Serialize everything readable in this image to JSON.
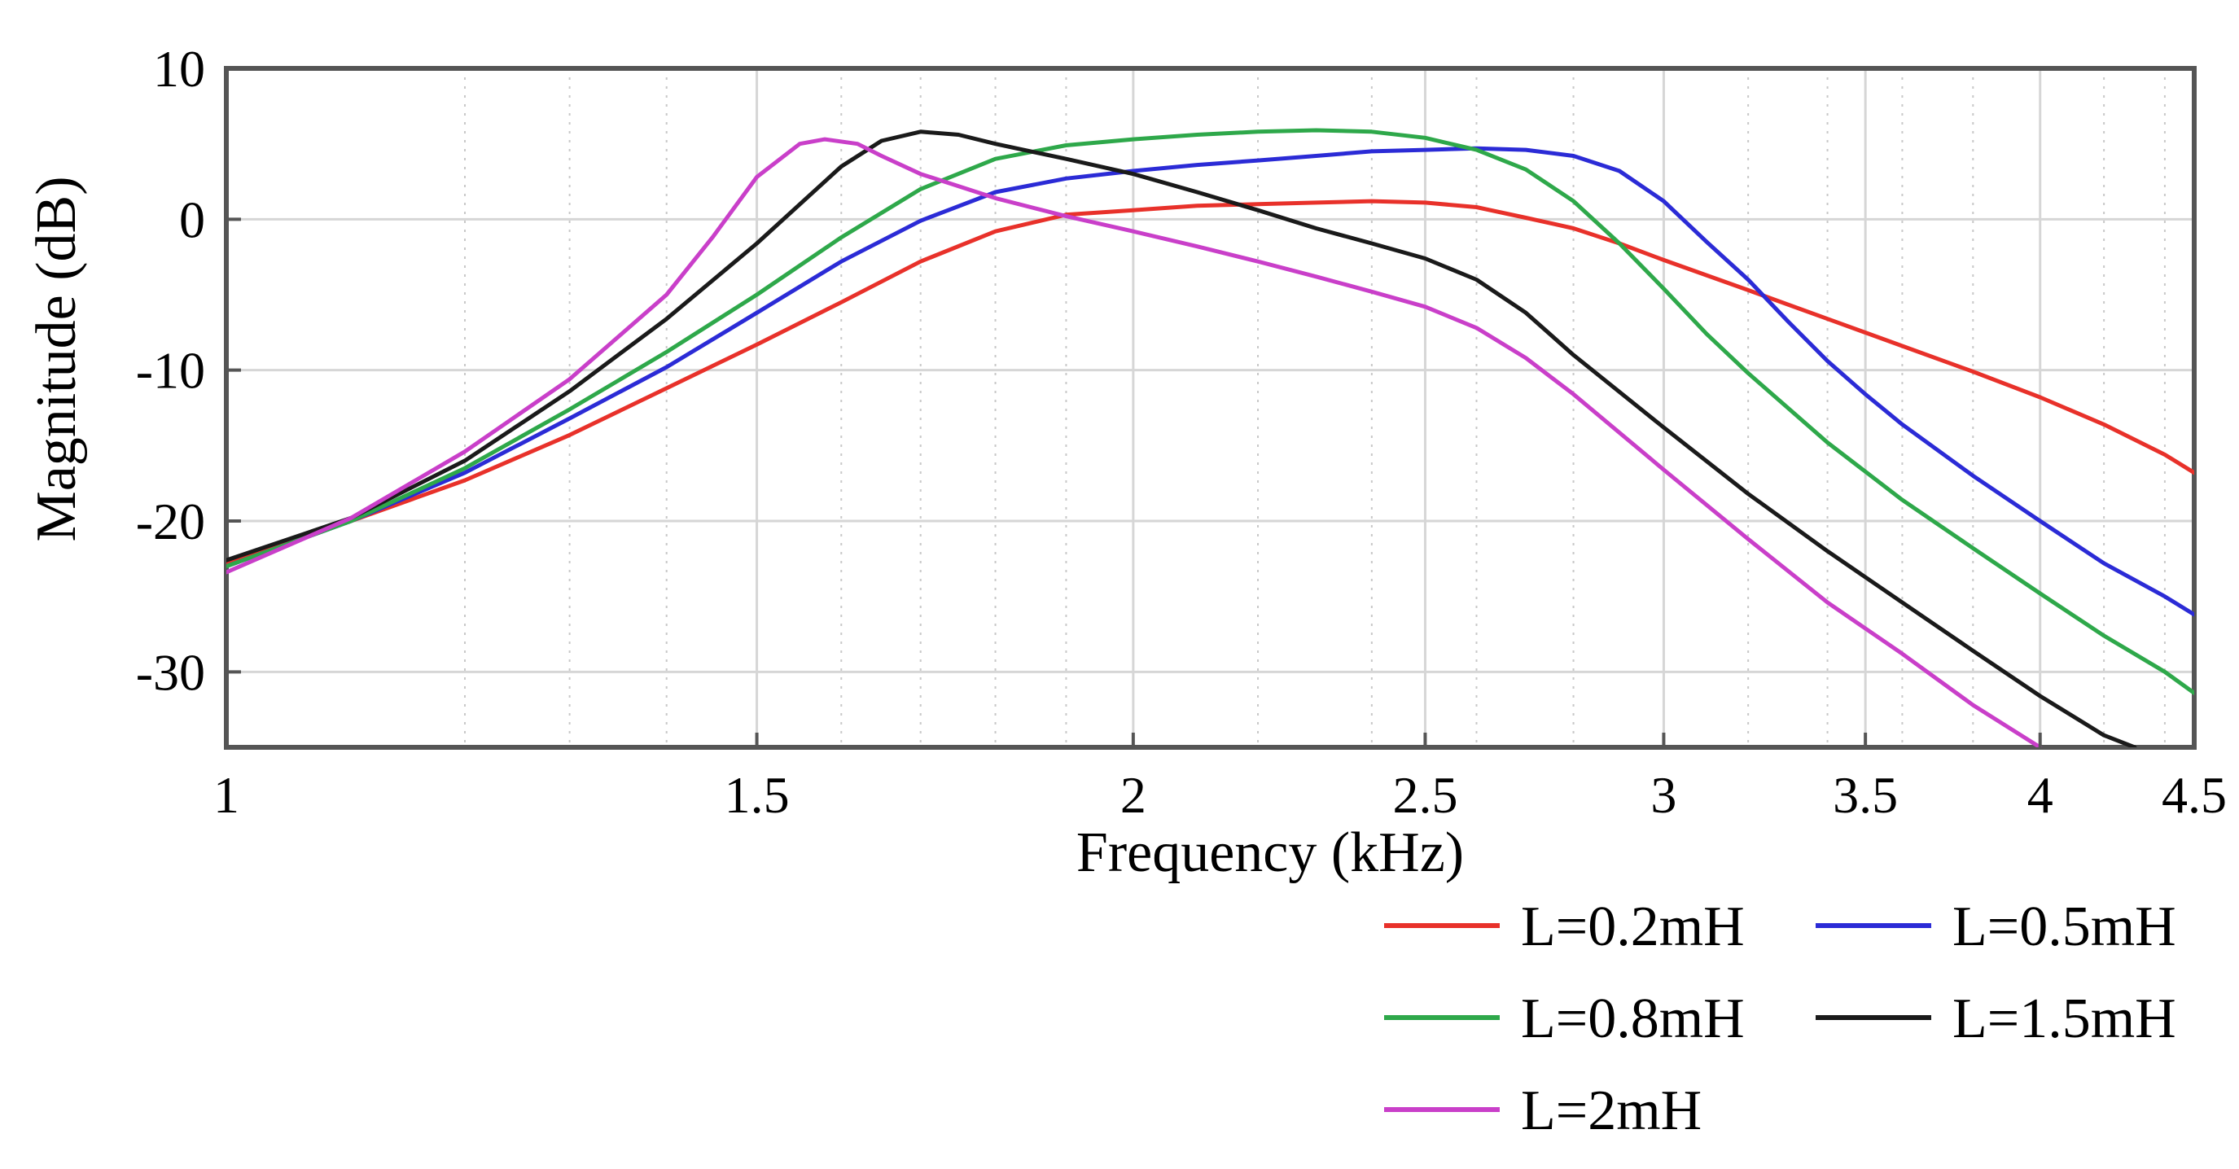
{
  "chart_data": {
    "type": "line",
    "title": "",
    "xlabel": "Frequency (kHz)",
    "ylabel": "Magnitude (dB)",
    "xscale": "log",
    "xlim": [
      1,
      4.5
    ],
    "ylim": [
      -35,
      10
    ],
    "grid": true,
    "legend_position": "below-right",
    "xticks": [
      {
        "value": 1,
        "label": "1"
      },
      {
        "value": 1.5,
        "label": "1.5"
      },
      {
        "value": 2,
        "label": "2"
      },
      {
        "value": 2.5,
        "label": "2.5"
      },
      {
        "value": 3,
        "label": "3"
      },
      {
        "value": 3.5,
        "label": "3.5"
      },
      {
        "value": 4,
        "label": "4"
      },
      {
        "value": 4.5,
        "label": "4.5"
      }
    ],
    "yticks": [
      {
        "value": 10,
        "label": "10"
      },
      {
        "value": 0,
        "label": "0"
      },
      {
        "value": -10,
        "label": "-10"
      },
      {
        "value": -20,
        "label": "-20"
      },
      {
        "value": -30,
        "label": "-30"
      }
    ],
    "minor_xgrid": [
      1.2,
      1.3,
      1.4,
      1.6,
      1.7,
      1.8,
      1.9,
      2.2,
      2.4,
      2.6,
      2.8,
      3.2,
      3.4,
      3.6,
      3.8,
      4.2,
      4.4
    ],
    "series": [
      {
        "name": "L=0.2mH",
        "color": "#e8312a",
        "x": [
          1.0,
          1.1,
          1.2,
          1.3,
          1.4,
          1.5,
          1.6,
          1.7,
          1.8,
          1.9,
          2.0,
          2.1,
          2.2,
          2.3,
          2.4,
          2.5,
          2.6,
          2.7,
          2.8,
          2.9,
          3.0,
          3.2,
          3.4,
          3.6,
          3.8,
          4.0,
          4.2,
          4.4,
          4.5
        ],
        "y": [
          -22.8,
          -20.0,
          -17.3,
          -14.3,
          -11.2,
          -8.3,
          -5.5,
          -2.8,
          -0.8,
          0.3,
          0.6,
          0.9,
          1.0,
          1.1,
          1.2,
          1.1,
          0.8,
          0.1,
          -0.6,
          -1.6,
          -2.7,
          -4.7,
          -6.6,
          -8.4,
          -10.1,
          -11.8,
          -13.6,
          -15.6,
          -16.8
        ]
      },
      {
        "name": "L=0.5mH",
        "color": "#2b2bd6",
        "x": [
          1.0,
          1.1,
          1.2,
          1.3,
          1.4,
          1.5,
          1.6,
          1.7,
          1.8,
          1.9,
          2.0,
          2.1,
          2.2,
          2.3,
          2.4,
          2.5,
          2.6,
          2.7,
          2.8,
          2.9,
          3.0,
          3.1,
          3.2,
          3.3,
          3.4,
          3.5,
          3.6,
          3.8,
          4.0,
          4.2,
          4.4,
          4.5
        ],
        "y": [
          -23.0,
          -20.0,
          -16.8,
          -13.2,
          -9.8,
          -6.2,
          -2.8,
          -0.1,
          1.8,
          2.7,
          3.2,
          3.6,
          3.9,
          4.2,
          4.5,
          4.6,
          4.7,
          4.6,
          4.2,
          3.2,
          1.2,
          -1.5,
          -4.0,
          -6.8,
          -9.4,
          -11.6,
          -13.6,
          -17.0,
          -20.0,
          -22.8,
          -25.0,
          -26.2
        ]
      },
      {
        "name": "L=0.8mH",
        "color": "#2ea84a",
        "x": [
          1.0,
          1.1,
          1.2,
          1.3,
          1.4,
          1.5,
          1.6,
          1.7,
          1.8,
          1.9,
          2.0,
          2.1,
          2.2,
          2.3,
          2.4,
          2.5,
          2.6,
          2.7,
          2.8,
          2.9,
          3.0,
          3.1,
          3.2,
          3.4,
          3.6,
          3.8,
          4.0,
          4.2,
          4.4,
          4.5
        ],
        "y": [
          -23.0,
          -20.0,
          -16.5,
          -12.6,
          -8.8,
          -5.0,
          -1.2,
          2.0,
          4.0,
          4.9,
          5.3,
          5.6,
          5.8,
          5.9,
          5.8,
          5.4,
          4.6,
          3.3,
          1.2,
          -1.6,
          -4.6,
          -7.6,
          -10.2,
          -14.8,
          -18.6,
          -21.8,
          -24.8,
          -27.6,
          -30.0,
          -31.4
        ]
      },
      {
        "name": "L=1.5mH",
        "color": "#1a1a1a",
        "x": [
          1.0,
          1.1,
          1.2,
          1.3,
          1.4,
          1.5,
          1.6,
          1.65,
          1.7,
          1.75,
          1.8,
          1.9,
          2.0,
          2.1,
          2.2,
          2.3,
          2.4,
          2.5,
          2.6,
          2.7,
          2.8,
          3.0,
          3.2,
          3.4,
          3.6,
          3.8,
          4.0,
          4.2,
          4.3
        ],
        "y": [
          -22.6,
          -19.8,
          -16.0,
          -11.4,
          -6.6,
          -1.6,
          3.5,
          5.2,
          5.8,
          5.6,
          5.0,
          4.0,
          3.0,
          1.8,
          0.6,
          -0.6,
          -1.6,
          -2.6,
          -4.0,
          -6.2,
          -9.0,
          -13.8,
          -18.2,
          -22.0,
          -25.4,
          -28.6,
          -31.6,
          -34.2,
          -35.0
        ]
      },
      {
        "name": "L=2mH",
        "color": "#c93fc9",
        "x": [
          1.0,
          1.1,
          1.2,
          1.3,
          1.4,
          1.45,
          1.5,
          1.55,
          1.58,
          1.62,
          1.65,
          1.7,
          1.8,
          1.9,
          2.0,
          2.1,
          2.2,
          2.3,
          2.4,
          2.5,
          2.6,
          2.7,
          2.8,
          3.0,
          3.2,
          3.4,
          3.6,
          3.8,
          4.0
        ],
        "y": [
          -23.4,
          -19.8,
          -15.4,
          -10.6,
          -5.0,
          -1.2,
          2.8,
          5.0,
          5.3,
          5.0,
          4.2,
          3.0,
          1.4,
          0.2,
          -0.8,
          -1.8,
          -2.8,
          -3.8,
          -4.8,
          -5.8,
          -7.2,
          -9.2,
          -11.6,
          -16.6,
          -21.2,
          -25.4,
          -28.8,
          -32.2,
          -35.0
        ]
      }
    ]
  }
}
